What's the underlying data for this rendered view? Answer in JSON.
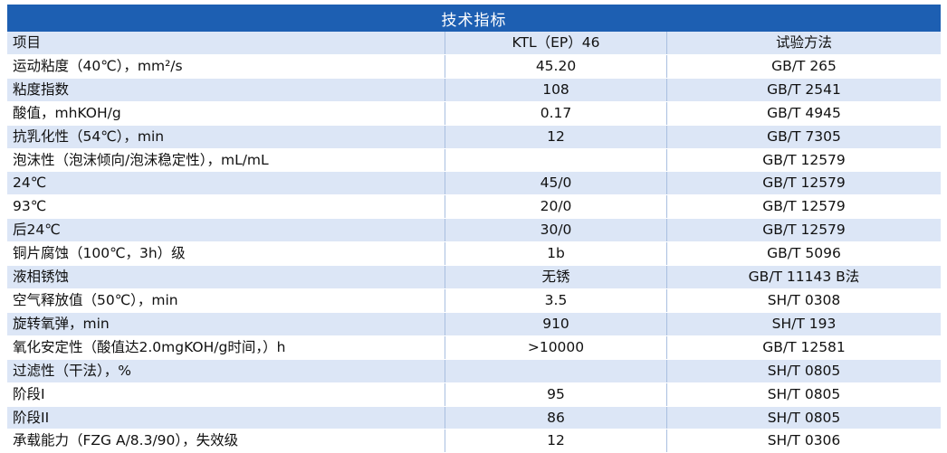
{
  "title": "技术指标",
  "headers": [
    "项目",
    "KTL（EP）46",
    "试验方法"
  ],
  "rows": [
    [
      "运动粘度（40℃），mm²/s",
      "45.20",
      "GB/T 265"
    ],
    [
      "粘度指数",
      "108",
      "GB/T 2541"
    ],
    [
      "酸值，mhKOH/g",
      "0.17",
      "GB/T 4945"
    ],
    [
      "抗乳化性（54℃），min",
      "12",
      "GB/T 7305"
    ],
    [
      "泡沫性（泡沫倾向/泡沫稳定性），mL/mL",
      "",
      "GB/T 12579"
    ],
    [
      "24℃",
      "45/0",
      "GB/T 12579"
    ],
    [
      "93℃",
      "20/0",
      "GB/T 12579"
    ],
    [
      "后24℃",
      "30/0",
      "GB/T 12579"
    ],
    [
      "铜片腐蚀（100℃，3h）级",
      "1b",
      "GB/T 5096"
    ],
    [
      "液相锈蚀",
      "无锈",
      "GB/T 11143 B法"
    ],
    [
      "空气释放值（50℃），min",
      "3.5",
      "SH/T 0308"
    ],
    [
      "旋转氧弹，min",
      "910",
      "SH/T 193"
    ],
    [
      "氧化安定性（酸值达2.0mgKOH/g时间，）h",
      ">10000",
      "GB/T 12581"
    ],
    [
      "过滤性（干法），%",
      "",
      "SH/T 0805"
    ],
    [
      "阶段I",
      "95",
      "SH/T 0805"
    ],
    [
      "阶段II",
      "86",
      "SH/T 0805"
    ],
    [
      "承载能力（FZG A/8.3/90），失效级",
      "12",
      "SH/T 0306"
    ]
  ],
  "colors": {
    "header_bg": "#1d5fb2",
    "stripe": "#dce6f6",
    "divider": "#a9bfe0"
  }
}
